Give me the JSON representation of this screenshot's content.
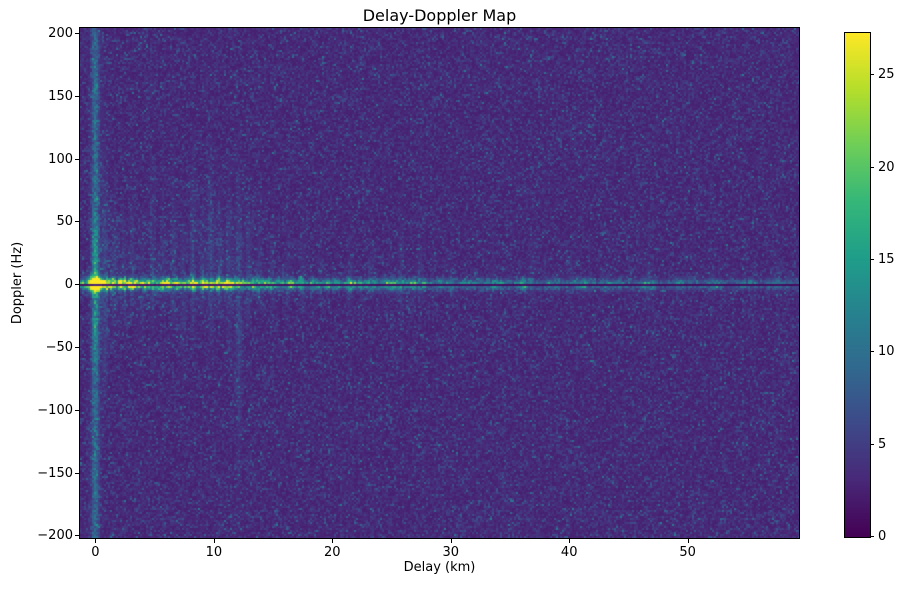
{
  "figure": {
    "background": "#ffffff"
  },
  "chart_data": {
    "type": "heatmap",
    "title": "Delay-Doppler Map",
    "xlabel": "Delay (km)",
    "ylabel": "Doppler (Hz)",
    "xlim": [
      -1.3,
      59.4
    ],
    "ylim": [
      -202,
      204
    ],
    "grid": false,
    "x_ticks": {
      "values": [
        0,
        10,
        20,
        30,
        40,
        50
      ],
      "labels": [
        "0",
        "10",
        "20",
        "30",
        "40",
        "50"
      ]
    },
    "y_ticks": {
      "values": [
        200,
        150,
        100,
        50,
        0,
        -50,
        -100,
        -150,
        -200
      ],
      "labels": [
        "200",
        "150",
        "100",
        "50",
        "0",
        "−50",
        "−100",
        "−150",
        "−200"
      ]
    },
    "colormap": "viridis",
    "colormap_anchors": [
      "#440154",
      "#482878",
      "#3e4989",
      "#31688e",
      "#26828e",
      "#1f9e89",
      "#35b779",
      "#6ece58",
      "#b5de2b",
      "#fde725"
    ],
    "colorbar": {
      "vmin": 0,
      "vmax": 27.3,
      "tick_values": [
        0,
        5,
        10,
        15,
        20,
        25
      ],
      "tick_labels": [
        "0",
        "5",
        "10",
        "15",
        "20",
        "25"
      ]
    },
    "model": {
      "seed": 42,
      "noise": {
        "base": 2.3,
        "scale": 1.35
      },
      "zero_delay_stripe": {
        "delay_km": 0,
        "sigma_km": 0.22,
        "amp": 6.0,
        "center_boost": 5.0,
        "center_sigma_hz": 40
      },
      "zero_doppler_band": {
        "amp_near": 14.0,
        "decay_km": 20,
        "amp_far": 5.5,
        "sigma_hz": 2.6
      },
      "dark_zero_line": {
        "half_width_hz": 1.0,
        "value": 0.5
      },
      "direct_signal": {
        "delay_km": 0,
        "doppler_hz": 0,
        "amp": 26,
        "sigma_km": 0.45,
        "sigma_hz": 4
      },
      "echo_blobs": [
        [
          1.1,
          0.9,
          0.5
        ],
        [
          2.2,
          0.7,
          0.4
        ],
        [
          3.3,
          0.8,
          0.5
        ],
        [
          4.6,
          0.6,
          0.4
        ],
        [
          5.9,
          0.7,
          0.5
        ],
        [
          7.1,
          0.6,
          0.4
        ],
        [
          8.3,
          0.8,
          0.5
        ],
        [
          9.7,
          1.0,
          0.5
        ],
        [
          10.6,
          0.8,
          0.4
        ],
        [
          11.5,
          0.9,
          0.5
        ],
        [
          12.4,
          0.7,
          0.4
        ],
        [
          13.6,
          0.6,
          0.5
        ],
        [
          15.1,
          0.5,
          0.5
        ],
        [
          16.8,
          0.6,
          0.5
        ],
        [
          18.4,
          0.5,
          0.4
        ],
        [
          20.1,
          0.6,
          0.5
        ],
        [
          21.7,
          0.7,
          0.5
        ],
        [
          23.4,
          0.5,
          0.4
        ],
        [
          25.2,
          0.7,
          0.5
        ],
        [
          26.9,
          0.6,
          0.5
        ],
        [
          29.1,
          0.5,
          0.5
        ],
        [
          31.5,
          0.5,
          0.4
        ],
        [
          33.8,
          0.6,
          0.5
        ],
        [
          36.2,
          0.7,
          0.5
        ],
        [
          38.6,
          0.5,
          0.4
        ],
        [
          40.9,
          0.5,
          0.5
        ],
        [
          43.3,
          0.4,
          0.4
        ],
        [
          46.6,
          0.8,
          0.5
        ],
        [
          49.2,
          0.4,
          0.4
        ],
        [
          52.1,
          0.5,
          0.5
        ],
        [
          55.0,
          0.4,
          0.4
        ],
        [
          57.8,
          0.5,
          0.5
        ]
      ],
      "streaks": [
        [
          0.8,
          3.5,
          60,
          45
        ],
        [
          1.6,
          2.5,
          35,
          25
        ],
        [
          2.4,
          2.2,
          28,
          18
        ],
        [
          3.1,
          2.0,
          40,
          15
        ],
        [
          3.9,
          1.8,
          25,
          30
        ],
        [
          4.8,
          2.2,
          45,
          20
        ],
        [
          5.7,
          2.0,
          30,
          12
        ],
        [
          6.6,
          2.4,
          50,
          18
        ],
        [
          7.4,
          2.0,
          28,
          35
        ],
        [
          8.2,
          2.6,
          55,
          20
        ],
        [
          9.0,
          2.2,
          35,
          15
        ],
        [
          9.7,
          3.2,
          55,
          25
        ],
        [
          10.5,
          2.6,
          40,
          18
        ],
        [
          11.3,
          2.4,
          45,
          30
        ],
        [
          12.1,
          3.0,
          50,
          85
        ],
        [
          12.9,
          2.4,
          38,
          20
        ],
        [
          13.8,
          2.0,
          30,
          14
        ],
        [
          14.9,
          1.8,
          25,
          12
        ],
        [
          16.2,
          1.6,
          22,
          10
        ],
        [
          17.5,
          1.5,
          28,
          12
        ],
        [
          19.0,
          1.4,
          20,
          10
        ],
        [
          21.5,
          1.6,
          26,
          12
        ],
        [
          23.2,
          1.3,
          18,
          8
        ],
        [
          25.8,
          1.7,
          30,
          14
        ],
        [
          27.3,
          1.4,
          22,
          10
        ],
        [
          30.0,
          1.2,
          16,
          8
        ],
        [
          33.5,
          1.2,
          18,
          8
        ],
        [
          36.8,
          1.3,
          20,
          10
        ],
        [
          40.1,
          1.1,
          14,
          7
        ],
        [
          46.6,
          1.8,
          16,
          12
        ],
        [
          52.0,
          1.0,
          12,
          6
        ],
        [
          57.5,
          1.1,
          14,
          7
        ]
      ]
    }
  }
}
